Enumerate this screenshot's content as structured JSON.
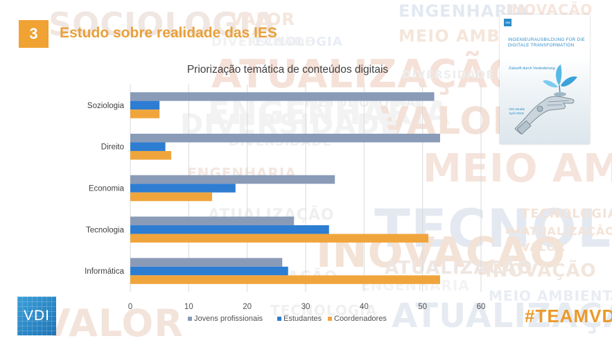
{
  "slide": {
    "number": "3",
    "title": "Estudo sobre realidade das IES",
    "hashtag": "#TEAMVDI",
    "logo_text": "VDI"
  },
  "colors": {
    "accent_orange": "#f0a233",
    "series_gray_blue": "#8a9bb8",
    "series_blue": "#2d7dd2",
    "series_orange": "#f0a53c",
    "brand_blue": "#2a8bc8"
  },
  "background_words": [
    "Sociologia",
    "Valor",
    "Engenharia",
    "Inovação",
    "Meio Ambiente",
    "Tecnologia",
    "Diversidade",
    "Atualização",
    "Metodologia",
    "Engenharia",
    "Meio Ambiente",
    "Valor",
    "Tecnologia",
    "Inovação",
    "Tecnologia",
    "Atualização",
    "Valor",
    "Atualização",
    "Inovação",
    "Meio Ambiente",
    "Atualização",
    "Inovação",
    "Engenharia",
    "Diversidade",
    "Diversidade",
    "Valor",
    "Tecnologia",
    "Diversidade",
    "Engenharia",
    "Atualização"
  ],
  "report_cover": {
    "logo": "VDI",
    "title": "INGENIEURAUSBILDUNG FÜR DIE DIGITALE TRANSFORMATION",
    "subtitle": "Zukunft durch Veränderung",
    "study_line1": "VDI-Studie",
    "study_line2": "April 2019",
    "illustration_icon": "robot-hand-icon"
  },
  "chart_data": {
    "type": "bar",
    "orientation": "horizontal",
    "title": "Priorização temática de conteúdos digitais",
    "categories": [
      "Soziologia",
      "Direito",
      "Economia",
      "Tecnologia",
      "Informática"
    ],
    "series": [
      {
        "name": "Jovens profissionais",
        "color": "#8a9bb8",
        "values": [
          52,
          53,
          35,
          28,
          26
        ]
      },
      {
        "name": "Estudantes",
        "color": "#2d7dd2",
        "values": [
          5,
          6,
          18,
          34,
          27
        ]
      },
      {
        "name": "Coordenadores",
        "color": "#f0a53c",
        "values": [
          5,
          7,
          14,
          51,
          53
        ]
      }
    ],
    "xlim": [
      0,
      60
    ],
    "xticks": [
      "0",
      "10",
      "20",
      "30",
      "40",
      "50",
      "60"
    ],
    "grid": true,
    "legend_position": "bottom"
  }
}
